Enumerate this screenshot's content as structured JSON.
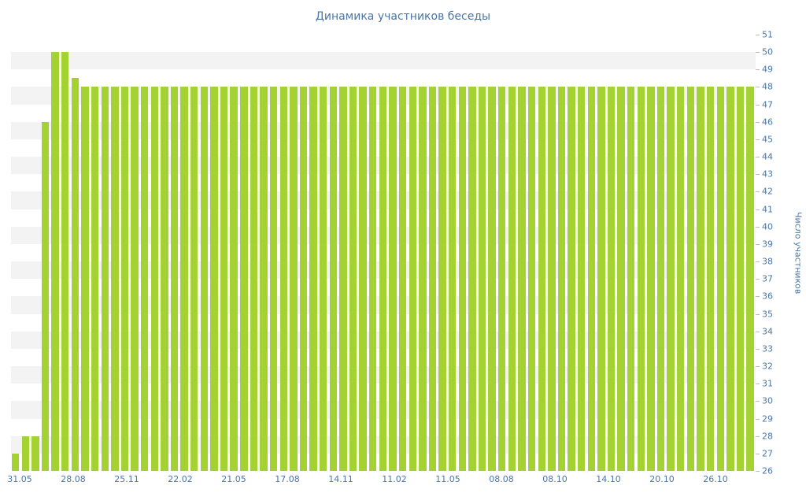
{
  "title": "Динамика участников беседы",
  "chart_data": {
    "type": "bar",
    "title": "Динамика участников беседы",
    "xlabel": "",
    "ylabel": "Число участников",
    "ylim": [
      26,
      51
    ],
    "grid": "horizontal-stripes",
    "legend": null,
    "y_ticks": [
      51,
      50,
      49,
      48,
      47,
      46,
      45,
      44,
      43,
      42,
      41,
      40,
      39,
      38,
      37,
      36,
      35,
      34,
      33,
      32,
      31,
      30,
      29,
      28,
      27,
      26
    ],
    "x_tick_labels": [
      "31.05",
      "28.08",
      "25.11",
      "22.02",
      "21.05",
      "17.08",
      "14.11",
      "11.02",
      "11.05",
      "08.08",
      "08.10",
      "14.10",
      "20.10",
      "26.10"
    ],
    "values": [
      27,
      28,
      28,
      46,
      50,
      50,
      48.5,
      48,
      48,
      48,
      48,
      48,
      48,
      48,
      48,
      48,
      48,
      48,
      48,
      48,
      48,
      48,
      48,
      48,
      48,
      48,
      48,
      48,
      48,
      48,
      48,
      48,
      48,
      48,
      48,
      48,
      48,
      48,
      48,
      48,
      48,
      48,
      48,
      48,
      48,
      48,
      48,
      48,
      48,
      48,
      48,
      48,
      48,
      48,
      48,
      48,
      48,
      48,
      48,
      48,
      48,
      48,
      48,
      48,
      48,
      48,
      48,
      48,
      48,
      48,
      48,
      48,
      48,
      48,
      48
    ]
  },
  "colors": {
    "background": "#ffffff",
    "bar": "#a3d232",
    "text": "#4a76a8",
    "stripe": "#f3f3f3",
    "tick": "#bcbcbc"
  }
}
